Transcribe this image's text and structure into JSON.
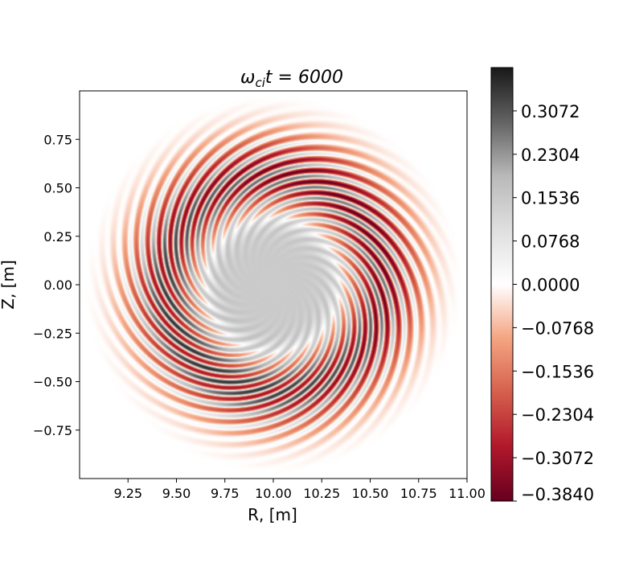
{
  "chart_data": {
    "type": "heatmap",
    "title": {
      "sym": "ω",
      "sub": "ci",
      "rest": "t = 6000"
    },
    "xlabel": "R, [m]",
    "ylabel": "Z, [m]",
    "xlim": [
      9.0,
      11.0
    ],
    "ylim": [
      -1.0,
      1.0
    ],
    "xticks": [
      9.25,
      9.5,
      9.75,
      10.0,
      10.25,
      10.5,
      10.75,
      11.0
    ],
    "xtick_labels": [
      "9.25",
      "9.50",
      "9.75",
      "10.00",
      "10.25",
      "10.50",
      "10.75",
      "11.00"
    ],
    "yticks": [
      0.75,
      0.5,
      0.25,
      0.0,
      -0.25,
      -0.5,
      -0.75
    ],
    "ytick_labels": [
      "0.75",
      "0.50",
      "0.25",
      "0.00",
      "−0.25",
      "−0.50",
      "−0.75"
    ],
    "colorbar": {
      "min": -0.384,
      "max": 0.384,
      "ticks": [
        0.3072,
        0.2304,
        0.1536,
        0.0768,
        0.0,
        -0.0768,
        -0.1536,
        -0.2304,
        -0.3072,
        -0.384
      ],
      "tick_labels": [
        "0.3072",
        "0.2304",
        "0.1536",
        "0.0768",
        "0.0000",
        "−0.0768",
        "−0.1536",
        "−0.2304",
        "−0.3072",
        "−0.3840"
      ],
      "colormap": "RdGy"
    },
    "field": {
      "center_R": 10.0,
      "center_Z": 0.0,
      "outer_radius": 0.98,
      "core_radius": 0.34,
      "core_value": 0.15,
      "ring_radius": 0.56,
      "ring_width": 0.18,
      "mode_number": 24,
      "mode_amplitude": 0.33,
      "positive_side_angle_deg": 225,
      "description": "ring of alternating positive/negative filaments"
    },
    "colors": {
      "positive_max": "#1a1a1a",
      "zero": "#ffffff",
      "negative_max": "#67001f"
    }
  }
}
